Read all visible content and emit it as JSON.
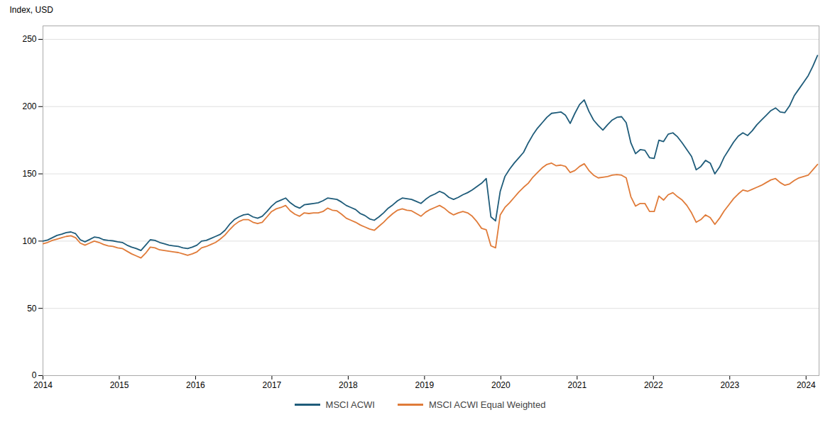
{
  "chart_data": {
    "type": "line",
    "ylabel": "Index, USD",
    "x": [
      2014.0,
      2014.0611,
      2014.1223,
      2014.1834,
      2014.2446,
      2014.3057,
      2014.3669,
      2014.428,
      2014.4892,
      2014.5503,
      2014.6114,
      2014.6726,
      2014.7337,
      2014.7949,
      2014.856,
      2014.9172,
      2014.9783,
      2015.0395,
      2015.1006,
      2015.1617,
      2015.2229,
      2015.284,
      2015.3452,
      2015.4063,
      2015.4675,
      2015.5286,
      2015.5898,
      2015.6509,
      2015.712,
      2015.7732,
      2015.8343,
      2015.8955,
      2015.9566,
      2016.0178,
      2016.0789,
      2016.1401,
      2016.2012,
      2016.2623,
      2016.3235,
      2016.3846,
      2016.4458,
      2016.5069,
      2016.5681,
      2016.6292,
      2016.6904,
      2016.7515,
      2016.8127,
      2016.8738,
      2016.9349,
      2016.9961,
      2017.0572,
      2017.1184,
      2017.1795,
      2017.2407,
      2017.3018,
      2017.363,
      2017.4241,
      2017.4852,
      2017.5464,
      2017.6075,
      2017.6687,
      2017.7298,
      2017.791,
      2017.8521,
      2017.9133,
      2017.9744,
      2018.0355,
      2018.0967,
      2018.1578,
      2018.219,
      2018.2801,
      2018.3413,
      2018.4024,
      2018.4636,
      2018.5247,
      2018.5858,
      2018.647,
      2018.7081,
      2018.7693,
      2018.8304,
      2018.8916,
      2018.9527,
      2019.0139,
      2019.075,
      2019.1361,
      2019.1973,
      2019.2584,
      2019.3196,
      2019.3807,
      2019.4419,
      2019.503,
      2019.5642,
      2019.6253,
      2019.6864,
      2019.7476,
      2019.8087,
      2019.8699,
      2019.931,
      2019.9922,
      2020.0533,
      2020.1145,
      2020.1756,
      2020.2367,
      2020.2979,
      2020.359,
      2020.4202,
      2020.4813,
      2020.5425,
      2020.6036,
      2020.6648,
      2020.7259,
      2020.787,
      2020.8482,
      2020.9093,
      2020.9705,
      2021.0316,
      2021.0928,
      2021.1539,
      2021.2151,
      2021.2762,
      2021.3373,
      2021.3985,
      2021.4596,
      2021.5208,
      2021.5819,
      2021.6431,
      2021.7042,
      2021.7654,
      2021.8265,
      2021.8877,
      2021.9488,
      2022.0099,
      2022.0711,
      2022.1322,
      2022.1934,
      2022.2545,
      2022.3157,
      2022.3768,
      2022.438,
      2022.4991,
      2022.5602,
      2022.6214,
      2022.6825,
      2022.7437,
      2022.8048,
      2022.866,
      2022.9271,
      2022.9883,
      2023.0494,
      2023.1105,
      2023.1717,
      2023.2328,
      2023.294,
      2023.3551,
      2023.4163,
      2023.4774,
      2023.5386,
      2023.5997,
      2023.6608,
      2023.722,
      2023.7831,
      2023.8443,
      2023.9054,
      2023.9666,
      2024.0277,
      2024.0889,
      2024.15
    ],
    "series": [
      {
        "name": "MSCI ACWI",
        "color": "#1f5c7a",
        "values": [
          100.0,
          100.8,
          102.5,
          104.2,
          105.1,
          106.3,
          106.8,
          105.5,
          101.0,
          99.5,
          101.2,
          103.0,
          102.5,
          101.0,
          100.5,
          100.2,
          99.5,
          99.0,
          97.0,
          95.5,
          94.5,
          93.0,
          97.0,
          101.0,
          100.5,
          99.0,
          98.0,
          97.0,
          96.5,
          96.0,
          95.0,
          94.5,
          95.5,
          97.0,
          100.0,
          100.5,
          102.0,
          103.5,
          105.0,
          108.0,
          112.5,
          116.0,
          118.0,
          119.5,
          120.0,
          118.0,
          117.0,
          118.5,
          122.0,
          126.0,
          129.0,
          130.5,
          132.0,
          128.5,
          126.0,
          124.5,
          127.0,
          127.5,
          128.0,
          128.5,
          130.0,
          132.0,
          131.5,
          131.0,
          129.0,
          126.5,
          125.0,
          123.5,
          120.5,
          119.0,
          116.5,
          115.5,
          118.0,
          121.0,
          124.5,
          127.0,
          130.0,
          132.0,
          131.5,
          131.0,
          129.5,
          128.0,
          131.0,
          133.5,
          135.0,
          137.0,
          135.5,
          132.5,
          131.0,
          132.5,
          134.5,
          136.0,
          138.0,
          140.5,
          143.0,
          146.5,
          118.0,
          115.0,
          137.0,
          148.0,
          153.5,
          158.0,
          162.0,
          166.0,
          173.0,
          179.0,
          184.0,
          188.0,
          192.0,
          195.0,
          195.5,
          196.0,
          193.5,
          187.5,
          195.0,
          201.5,
          205.0,
          196.5,
          190.0,
          186.0,
          182.5,
          186.5,
          190.0,
          192.0,
          192.5,
          188.0,
          173.0,
          165.0,
          168.0,
          167.5,
          162.0,
          161.5,
          175.0,
          174.0,
          179.5,
          180.5,
          177.5,
          173.0,
          168.0,
          163.0,
          153.0,
          155.5,
          160.0,
          158.0,
          150.0,
          155.0,
          162.5,
          168.0,
          173.5,
          178.0,
          180.5,
          178.5,
          182.0,
          186.5,
          190.0,
          193.5,
          197.0,
          199.0,
          196.0,
          195.5,
          200.5,
          208.0,
          213.0,
          218.0,
          223.0,
          230.0,
          238.0
        ]
      },
      {
        "name": "MSCI ACWI Equal Weighted",
        "color": "#e07b39",
        "values": [
          98.0,
          99.0,
          100.5,
          101.5,
          102.5,
          103.5,
          104.0,
          102.5,
          98.5,
          97.0,
          98.5,
          100.0,
          99.0,
          97.5,
          96.5,
          96.0,
          95.0,
          94.5,
          92.5,
          90.5,
          89.0,
          87.5,
          91.0,
          95.5,
          95.0,
          93.5,
          93.0,
          92.5,
          92.0,
          91.5,
          90.5,
          89.5,
          90.5,
          92.0,
          95.0,
          96.0,
          97.5,
          99.0,
          101.5,
          104.5,
          108.5,
          112.0,
          114.5,
          116.0,
          116.0,
          114.0,
          113.0,
          114.0,
          118.0,
          122.0,
          124.0,
          125.0,
          126.5,
          122.5,
          120.0,
          118.5,
          121.0,
          120.5,
          121.0,
          121.0,
          122.0,
          124.5,
          123.0,
          122.5,
          120.0,
          117.0,
          115.5,
          114.0,
          112.0,
          110.5,
          109.0,
          108.0,
          111.0,
          114.0,
          117.5,
          120.5,
          123.0,
          124.0,
          123.0,
          122.5,
          120.5,
          118.5,
          121.5,
          123.5,
          125.0,
          126.5,
          124.5,
          121.5,
          119.5,
          121.0,
          122.0,
          121.0,
          118.5,
          114.5,
          109.5,
          108.5,
          96.5,
          95.0,
          119.5,
          125.0,
          128.5,
          132.5,
          136.5,
          140.0,
          143.0,
          147.5,
          151.0,
          154.5,
          157.0,
          158.0,
          156.0,
          156.5,
          155.5,
          151.0,
          152.5,
          155.5,
          157.5,
          152.5,
          149.0,
          147.0,
          147.5,
          148.0,
          149.0,
          149.5,
          149.0,
          147.0,
          133.0,
          126.0,
          128.0,
          128.0,
          122.0,
          122.0,
          133.5,
          130.5,
          134.5,
          136.0,
          133.0,
          130.5,
          126.5,
          121.0,
          114.0,
          116.0,
          119.5,
          117.5,
          112.5,
          117.0,
          122.5,
          127.0,
          131.5,
          135.0,
          138.0,
          137.0,
          138.5,
          140.0,
          141.5,
          143.5,
          145.5,
          146.5,
          143.5,
          141.5,
          142.5,
          145.0,
          147.0,
          148.0,
          149.0,
          153.0,
          157.0
        ]
      }
    ],
    "xlim": [
      2014.0,
      2024.17
    ],
    "xticks": [
      2014,
      2015,
      2016,
      2017,
      2018,
      2019,
      2020,
      2021,
      2022,
      2023,
      2024
    ],
    "ylim": [
      0,
      260
    ],
    "yticks": [
      0,
      50,
      100,
      150,
      200,
      250
    ],
    "grid": true,
    "legend": "bottom"
  }
}
